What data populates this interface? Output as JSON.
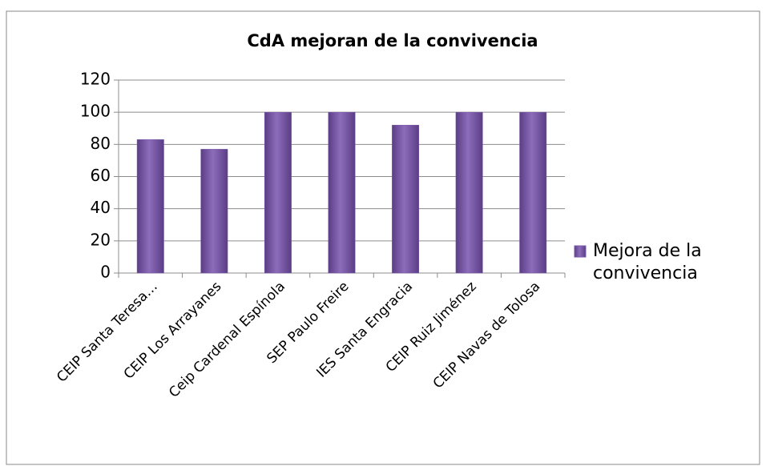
{
  "chart_data": {
    "type": "bar",
    "title": "CdA mejoran de la convivencia",
    "categories": [
      "CEIP Santa Teresa…",
      "CEIP Los Arrayanes",
      "Ceip Cardenal Espínola",
      "SEP Paulo Freire",
      "IES Santa Engracia",
      "CEIP Ruiz Jiménez",
      "CEIP Navas de Tolosa"
    ],
    "series": [
      {
        "name": "Mejora de la convivencia",
        "color": "#7a5ba6",
        "values": [
          83,
          77,
          100,
          100,
          92,
          100,
          100
        ]
      }
    ],
    "ylim": [
      0,
      120
    ],
    "yticks": [
      0,
      20,
      40,
      60,
      80,
      100,
      120
    ],
    "grid": true,
    "legend": "right"
  }
}
